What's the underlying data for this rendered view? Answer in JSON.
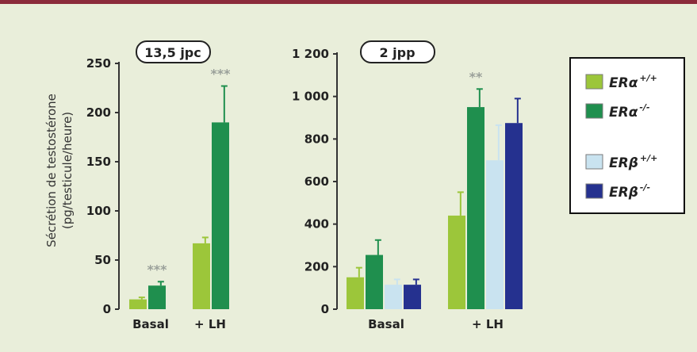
{
  "colors": {
    "background": "#e9eeda",
    "top_bar": "#8b2b3b",
    "era_wt": "#9cc63a",
    "era_ko": "#1f8f4e",
    "erb_wt": "#c9e3f0",
    "erb_ko": "#25318f",
    "axis": "#333333"
  },
  "y_axis_label": [
    "Sécrétion de testostérone",
    "(pg/testicule/heure)"
  ],
  "legend": [
    {
      "key": "era_wt",
      "base": "ERα",
      "sup": "+/+"
    },
    {
      "key": "era_ko",
      "base": "ERα",
      "sup": "-/-"
    },
    {
      "key": "erb_wt",
      "base": "ERβ",
      "sup": "+/+"
    },
    {
      "key": "erb_ko",
      "base": "ERβ",
      "sup": "-/-"
    }
  ],
  "chart_data": [
    {
      "type": "bar",
      "title": "13,5 jpc",
      "ylim": [
        0,
        250
      ],
      "yticks": [
        0,
        50,
        100,
        150,
        200,
        250
      ],
      "ytick_labels": [
        "0",
        "50",
        "100",
        "150",
        "200",
        "250"
      ],
      "categories": [
        "Basal",
        "+ LH"
      ],
      "series": [
        {
          "key": "era_wt",
          "values": [
            10,
            67
          ],
          "errors": [
            2,
            6
          ]
        },
        {
          "key": "era_ko",
          "values": [
            24,
            190
          ],
          "errors": [
            4,
            37
          ]
        }
      ],
      "significance": [
        "***",
        "***"
      ],
      "significance_series": "era_ko"
    },
    {
      "type": "bar",
      "title": "2 jpp",
      "ylim": [
        0,
        1200
      ],
      "yticks": [
        0,
        200,
        400,
        600,
        800,
        1000,
        1200
      ],
      "ytick_labels": [
        "0",
        "200",
        "400",
        "600",
        "800",
        "1 000",
        "1 200"
      ],
      "categories": [
        "Basal",
        "+ LH"
      ],
      "series": [
        {
          "key": "era_wt",
          "values": [
            150,
            440
          ],
          "errors": [
            45,
            110
          ]
        },
        {
          "key": "era_ko",
          "values": [
            255,
            950
          ],
          "errors": [
            70,
            85
          ]
        },
        {
          "key": "erb_wt",
          "values": [
            115,
            700
          ],
          "errors": [
            25,
            165
          ]
        },
        {
          "key": "erb_ko",
          "values": [
            115,
            875
          ],
          "errors": [
            25,
            115
          ]
        }
      ],
      "significance": [
        "",
        "**"
      ],
      "significance_series": "era_ko"
    }
  ]
}
